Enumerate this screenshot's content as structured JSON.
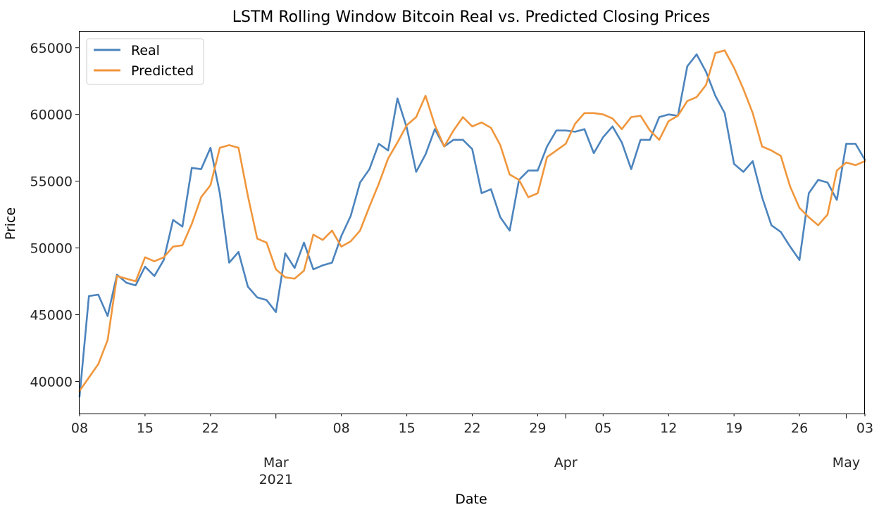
{
  "chart_data": {
    "type": "line",
    "title": "LSTM Rolling Window Bitcoin Real vs. Predicted Closing Prices",
    "xlabel": "Date",
    "ylabel": "Price",
    "x_start": "2021-02-08",
    "x_end": "2021-05-03",
    "ylim": [
      37600,
      66200
    ],
    "yticks": [
      40000,
      45000,
      50000,
      55000,
      60000,
      65000
    ],
    "minor_ticks": [
      "2021-02-15",
      "2021-02-22",
      "2021-03-08",
      "2021-03-15",
      "2021-03-22",
      "2021-03-29",
      "2021-04-05",
      "2021-04-12",
      "2021-04-19",
      "2021-04-26"
    ],
    "minor_tick_labels": [
      "15",
      "22",
      "08",
      "15",
      "22",
      "29",
      "05",
      "12",
      "19",
      "26"
    ],
    "end_tick_labels": [
      "08",
      "03"
    ],
    "major_ticks": [
      "2021-03-01",
      "2021-04-01",
      "2021-05-01"
    ],
    "major_tick_labels": [
      "Mar\n2021",
      "Apr",
      "May"
    ],
    "legend_position": "upper-left",
    "grid": false,
    "series": [
      {
        "name": "Real",
        "color": "#4c84bd",
        "x": [
          "2021-02-08",
          "2021-02-09",
          "2021-02-10",
          "2021-02-11",
          "2021-02-12",
          "2021-02-13",
          "2021-02-14",
          "2021-02-15",
          "2021-02-16",
          "2021-02-17",
          "2021-02-18",
          "2021-02-19",
          "2021-02-20",
          "2021-02-21",
          "2021-02-22",
          "2021-02-23",
          "2021-02-24",
          "2021-02-25",
          "2021-02-26",
          "2021-02-27",
          "2021-02-28",
          "2021-03-01",
          "2021-03-02",
          "2021-03-03",
          "2021-03-04",
          "2021-03-05",
          "2021-03-06",
          "2021-03-07",
          "2021-03-08",
          "2021-03-09",
          "2021-03-10",
          "2021-03-11",
          "2021-03-12",
          "2021-03-13",
          "2021-03-14",
          "2021-03-15",
          "2021-03-16",
          "2021-03-17",
          "2021-03-18",
          "2021-03-19",
          "2021-03-20",
          "2021-03-21",
          "2021-03-22",
          "2021-03-23",
          "2021-03-24",
          "2021-03-25",
          "2021-03-26",
          "2021-03-27",
          "2021-03-28",
          "2021-03-29",
          "2021-03-30",
          "2021-03-31",
          "2021-04-01",
          "2021-04-02",
          "2021-04-03",
          "2021-04-04",
          "2021-04-05",
          "2021-04-06",
          "2021-04-07",
          "2021-04-08",
          "2021-04-09",
          "2021-04-10",
          "2021-04-11",
          "2021-04-12",
          "2021-04-13",
          "2021-04-14",
          "2021-04-15",
          "2021-04-16",
          "2021-04-17",
          "2021-04-18",
          "2021-04-19",
          "2021-04-20",
          "2021-04-21",
          "2021-04-22",
          "2021-04-23",
          "2021-04-24",
          "2021-04-25",
          "2021-04-26",
          "2021-04-27",
          "2021-04-28",
          "2021-04-29",
          "2021-04-30",
          "2021-05-01",
          "2021-05-02",
          "2021-05-03"
        ],
        "values": [
          38900,
          46400,
          46500,
          44900,
          48000,
          47400,
          47200,
          48600,
          47900,
          49100,
          52100,
          51600,
          56000,
          55900,
          57500,
          54100,
          48900,
          49700,
          47100,
          46300,
          46100,
          45200,
          49600,
          48500,
          50400,
          48400,
          48700,
          48900,
          50900,
          52400,
          54900,
          55900,
          57800,
          57300,
          61200,
          59000,
          55700,
          57000,
          58900,
          57600,
          58100,
          58100,
          57400,
          54100,
          54400,
          52300,
          51300,
          55100,
          55800,
          55800,
          57600,
          58800,
          58800,
          58700,
          58900,
          57100,
          58300,
          59100,
          57900,
          55900,
          58100,
          58100,
          59800,
          60000,
          59900,
          63600,
          64500,
          63200,
          61400,
          60100,
          56300,
          55700,
          56500,
          53800,
          51700,
          51200,
          50100,
          49100,
          54100,
          55100,
          54900,
          53600,
          57800,
          57800,
          56600
        ]
      },
      {
        "name": "Predicted",
        "color": "#f0963c",
        "x": [
          "2021-02-08",
          "2021-02-09",
          "2021-02-10",
          "2021-02-11",
          "2021-02-12",
          "2021-02-13",
          "2021-02-14",
          "2021-02-15",
          "2021-02-16",
          "2021-02-17",
          "2021-02-18",
          "2021-02-19",
          "2021-02-20",
          "2021-02-21",
          "2021-02-22",
          "2021-02-23",
          "2021-02-24",
          "2021-02-25",
          "2021-02-26",
          "2021-02-27",
          "2021-02-28",
          "2021-03-01",
          "2021-03-02",
          "2021-03-03",
          "2021-03-04",
          "2021-03-05",
          "2021-03-06",
          "2021-03-07",
          "2021-03-08",
          "2021-03-09",
          "2021-03-10",
          "2021-03-11",
          "2021-03-12",
          "2021-03-13",
          "2021-03-14",
          "2021-03-15",
          "2021-03-16",
          "2021-03-17",
          "2021-03-18",
          "2021-03-19",
          "2021-03-20",
          "2021-03-21",
          "2021-03-22",
          "2021-03-23",
          "2021-03-24",
          "2021-03-25",
          "2021-03-26",
          "2021-03-27",
          "2021-03-28",
          "2021-03-29",
          "2021-03-30",
          "2021-03-31",
          "2021-04-01",
          "2021-04-02",
          "2021-04-03",
          "2021-04-04",
          "2021-04-05",
          "2021-04-06",
          "2021-04-07",
          "2021-04-08",
          "2021-04-09",
          "2021-04-10",
          "2021-04-11",
          "2021-04-12",
          "2021-04-13",
          "2021-04-14",
          "2021-04-15",
          "2021-04-16",
          "2021-04-17",
          "2021-04-18",
          "2021-04-19",
          "2021-04-20",
          "2021-04-21",
          "2021-04-22",
          "2021-04-23",
          "2021-04-24",
          "2021-04-25",
          "2021-04-26",
          "2021-04-27",
          "2021-04-28",
          "2021-04-29",
          "2021-04-30",
          "2021-05-01",
          "2021-05-02",
          "2021-05-03"
        ],
        "values": [
          39300,
          40300,
          41300,
          43100,
          47900,
          47700,
          47500,
          49300,
          49000,
          49300,
          50100,
          50200,
          51800,
          53800,
          54700,
          57500,
          57700,
          57500,
          53900,
          50700,
          50400,
          48400,
          47800,
          47700,
          48300,
          51000,
          50600,
          51300,
          50100,
          50500,
          51300,
          53100,
          54800,
          56700,
          57900,
          59200,
          59800,
          61400,
          59200,
          57600,
          58800,
          59800,
          59100,
          59400,
          59000,
          57700,
          55500,
          55100,
          53800,
          54100,
          56800,
          57300,
          57800,
          59300,
          60100,
          60100,
          60000,
          59700,
          58900,
          59800,
          59900,
          58800,
          58100,
          59500,
          59900,
          61000,
          61300,
          62200,
          64600,
          64800,
          63500,
          61900,
          60100,
          57600,
          57300,
          56900,
          54600,
          53000,
          52300,
          51700,
          52500,
          55800,
          56400,
          56200,
          56500
        ]
      }
    ]
  }
}
